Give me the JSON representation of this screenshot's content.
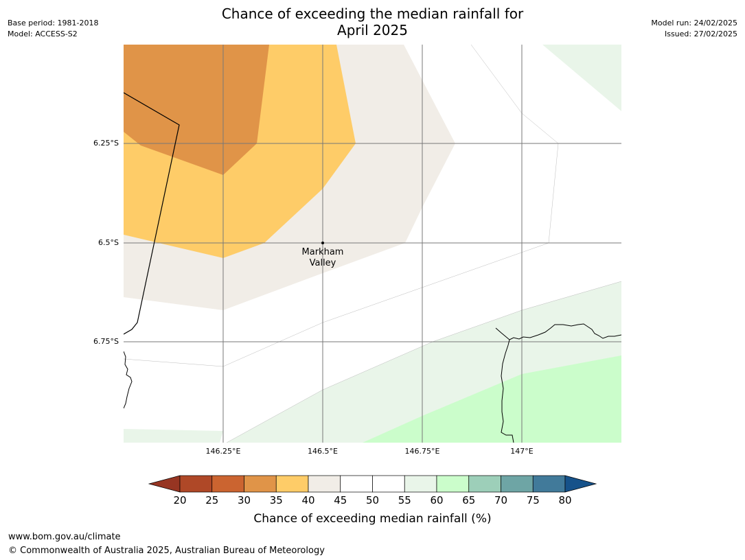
{
  "header": {
    "title_line1": "Chance of exceeding the median rainfall for",
    "title_line2": "April 2025",
    "base_period": "Base period: 1981-2018",
    "model": "Model: ACCESS-S2",
    "model_run": "Model run: 24/02/2025",
    "issued": "Issued: 27/02/2025"
  },
  "map": {
    "x_ticks": [
      "146.25°E",
      "146.5°E",
      "146.75°E",
      "147°E"
    ],
    "y_ticks": [
      "6.25°S",
      "6.5°S",
      "6.75°S"
    ],
    "place": {
      "line1": "Markham",
      "line2": "Valley"
    },
    "zone_colors": {
      "30-35": "#e09448",
      "35-40": "#fecc68",
      "40-45": "#f1ede7",
      "45-55": "#ffffff",
      "55-60": "#e9f5e9",
      "60-65": "#cbfdcb"
    }
  },
  "colorbar": {
    "title": "Chance of exceeding median rainfall (%)",
    "labels": [
      "20",
      "25",
      "30",
      "35",
      "40",
      "45",
      "50",
      "55",
      "60",
      "65",
      "70",
      "75",
      "80"
    ],
    "colors": [
      "#af4827",
      "#cb6430",
      "#e09448",
      "#fecc68",
      "#f1ede7",
      "#ffffff",
      "#ffffff",
      "#e9f5e9",
      "#cbfdcb",
      "#9dcfb9",
      "#6ea5a5",
      "#417a9a"
    ],
    "under_color": "#973522",
    "over_color": "#16528a"
  },
  "footer": {
    "url": "www.bom.gov.au/climate",
    "copyright": "© Commonwealth of Australia 2025, Australian Bureau of Meteorology"
  }
}
